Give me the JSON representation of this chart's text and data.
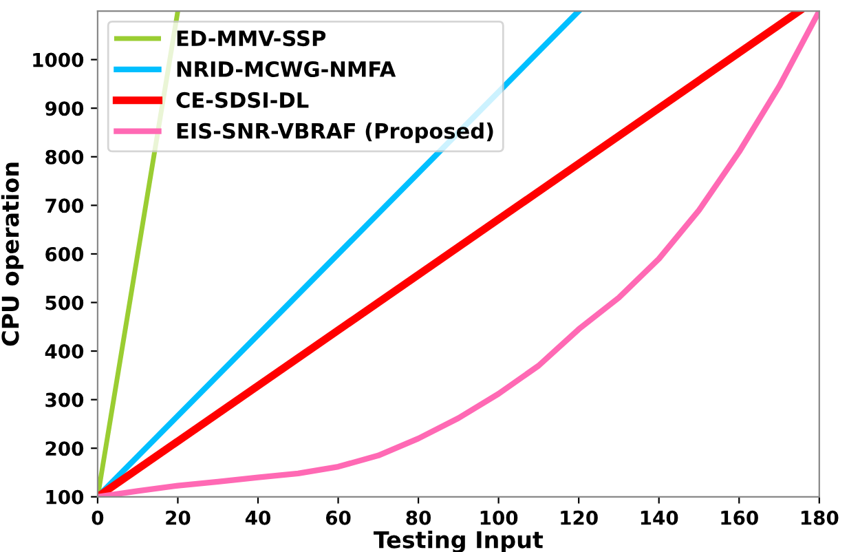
{
  "chart_data": {
    "type": "line",
    "xlabel": "Testing Input",
    "ylabel": "CPU operation",
    "xlim": [
      0,
      180
    ],
    "ylim": [
      100,
      1100
    ],
    "xticks": [
      0,
      20,
      40,
      60,
      80,
      100,
      120,
      140,
      160,
      180
    ],
    "yticks": [
      100,
      200,
      300,
      400,
      500,
      600,
      700,
      800,
      900,
      1000
    ],
    "grid": false,
    "legend": "top left",
    "line_style": "solid",
    "marker": "none",
    "series": [
      {
        "name": "ED-MMV-SSP",
        "color": "#9acd32",
        "x": [
          0,
          20
        ],
        "values": [
          100,
          1100
        ]
      },
      {
        "name": "NRID-MCWG-NMFA",
        "color": "#00bfff",
        "x": [
          0,
          120
        ],
        "values": [
          100,
          1100
        ]
      },
      {
        "name": "CE-SDSI-DL",
        "color": "#ff0000",
        "x": [
          0,
          175
        ],
        "values": [
          100,
          1100
        ]
      },
      {
        "name": "EIS-SNR-VBRAF (Proposed)",
        "color": "#ff69b4",
        "x": [
          0,
          10,
          20,
          30,
          40,
          50,
          60,
          70,
          80,
          90,
          100,
          110,
          120,
          130,
          140,
          150,
          160,
          170,
          180
        ],
        "values": [
          100,
          112,
          123,
          131,
          140,
          148,
          162,
          185,
          220,
          262,
          312,
          370,
          445,
          510,
          590,
          690,
          810,
          945,
          1100
        ]
      }
    ]
  }
}
